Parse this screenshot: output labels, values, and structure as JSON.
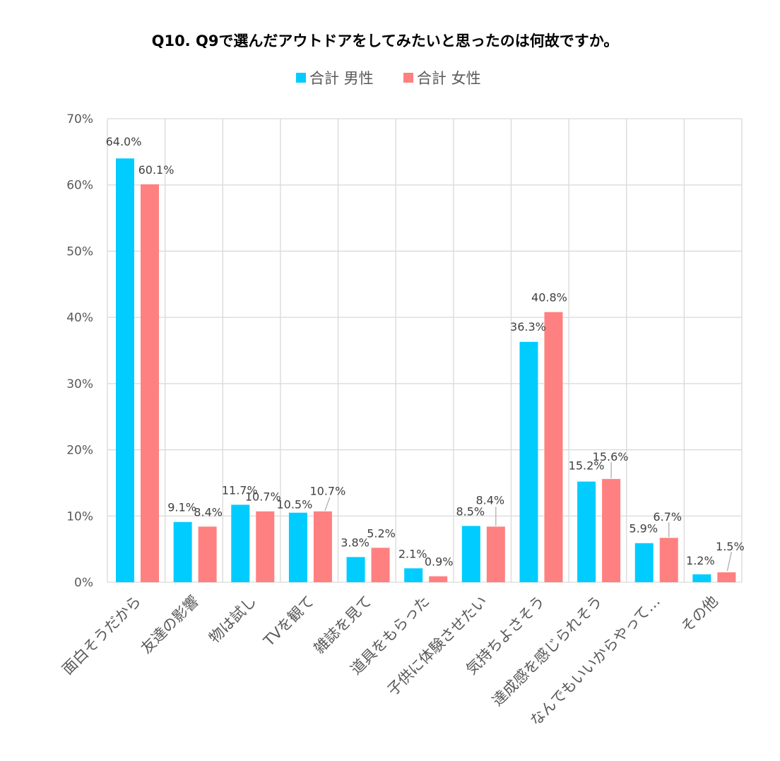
{
  "chart_data": {
    "type": "bar",
    "title": "Q10. Q9で選んだアウトドアをしてみたいと思ったのは何故ですか。",
    "categories": [
      "面白そうだから",
      "友達の影響",
      "物は試し",
      "TVを観て",
      "雑誌を見て",
      "道具をもらった",
      "子供に体験させたい",
      "気持ちよさそう",
      "達成感を感じられそう",
      "なんでもいいからやって…",
      "その他"
    ],
    "series": [
      {
        "name": "合計 男性",
        "color": "#00CCFF",
        "values": [
          64.0,
          9.1,
          11.7,
          10.5,
          3.8,
          2.1,
          8.5,
          36.3,
          15.2,
          5.9,
          1.2
        ]
      },
      {
        "name": "合計 女性",
        "color": "#FF8080",
        "values": [
          60.1,
          8.4,
          10.7,
          10.7,
          5.2,
          0.9,
          8.4,
          40.8,
          15.6,
          6.7,
          1.5
        ]
      }
    ],
    "data_labels": [
      [
        "64.0%",
        "9.1%",
        "11.7%",
        "10.5%",
        "3.8%",
        "2.1%",
        "8.5%",
        "36.3%",
        "15.2%",
        "5.9%",
        "1.2%"
      ],
      [
        "60.1%",
        "8.4%",
        "10.7%",
        "10.7%",
        "5.2%",
        "0.9%",
        "8.4%",
        "40.8%",
        "15.6%",
        "6.7%",
        "1.5%"
      ]
    ],
    "y_ticks": [
      "0%",
      "10%",
      "20%",
      "30%",
      "40%",
      "50%",
      "60%",
      "70%"
    ],
    "ylim": [
      0,
      70
    ],
    "ylabel": "",
    "xlabel": "",
    "legend_position": "top",
    "grid": true,
    "gridline_color": "#D9D9D9"
  }
}
